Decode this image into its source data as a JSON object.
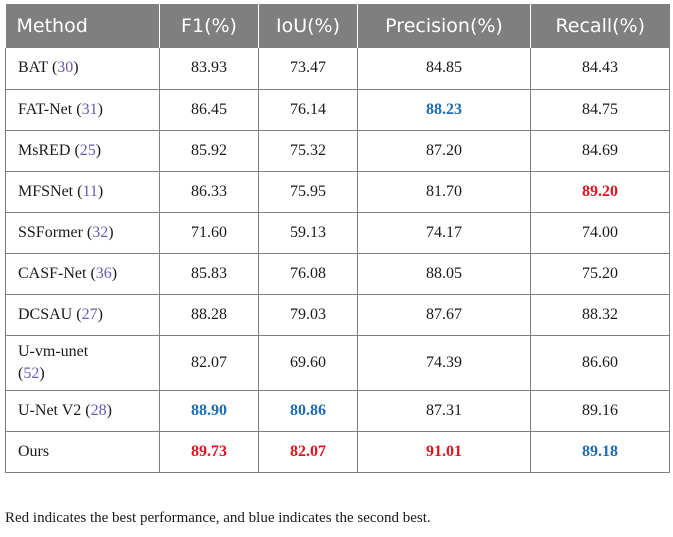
{
  "table": {
    "headers": [
      "Method",
      "F1(%)",
      "IoU(%)",
      "Precision(%)",
      "Recall(%)"
    ],
    "colors": {
      "header_background": "#7f7f80",
      "best": "#e4121d",
      "second_best": "#1e6cb4",
      "reference_link": "#6e58b6"
    },
    "rows": [
      {
        "name": "BAT",
        "ref": "30",
        "f1": "83.93",
        "iou": "73.47",
        "precision": "84.85",
        "recall": "84.43"
      },
      {
        "name": "FAT-Net",
        "ref": "31",
        "f1": "86.45",
        "iou": "76.14",
        "precision": "88.23",
        "recall": "84.75"
      },
      {
        "name": "MsRED",
        "ref": "25",
        "f1": "85.92",
        "iou": "75.32",
        "precision": "87.20",
        "recall": "84.69"
      },
      {
        "name": "MFSNet",
        "ref": "11",
        "f1": "86.33",
        "iou": "75.95",
        "precision": "81.70",
        "recall": "89.20"
      },
      {
        "name": "SSFormer",
        "ref": "32",
        "f1": "71.60",
        "iou": "59.13",
        "precision": "74.17",
        "recall": "74.00"
      },
      {
        "name": "CASF-Net",
        "ref": "36",
        "f1": "85.83",
        "iou": "76.08",
        "precision": "88.05",
        "recall": "75.20"
      },
      {
        "name": "DCSAU",
        "ref": "27",
        "f1": "88.28",
        "iou": "79.03",
        "precision": "87.67",
        "recall": "88.32"
      },
      {
        "name": "U-vm-unet",
        "ref": "52",
        "f1": "82.07",
        "iou": "69.60",
        "precision": "74.39",
        "recall": "86.60"
      },
      {
        "name": "U-Net V2",
        "ref": "28",
        "f1": "88.90",
        "iou": "80.86",
        "precision": "87.31",
        "recall": "89.16"
      },
      {
        "name": "Ours",
        "ref": "",
        "f1": "89.73",
        "iou": "82.07",
        "precision": "91.01",
        "recall": "89.18"
      }
    ]
  },
  "caption": "Red indicates the best performance, and blue indicates the second best."
}
